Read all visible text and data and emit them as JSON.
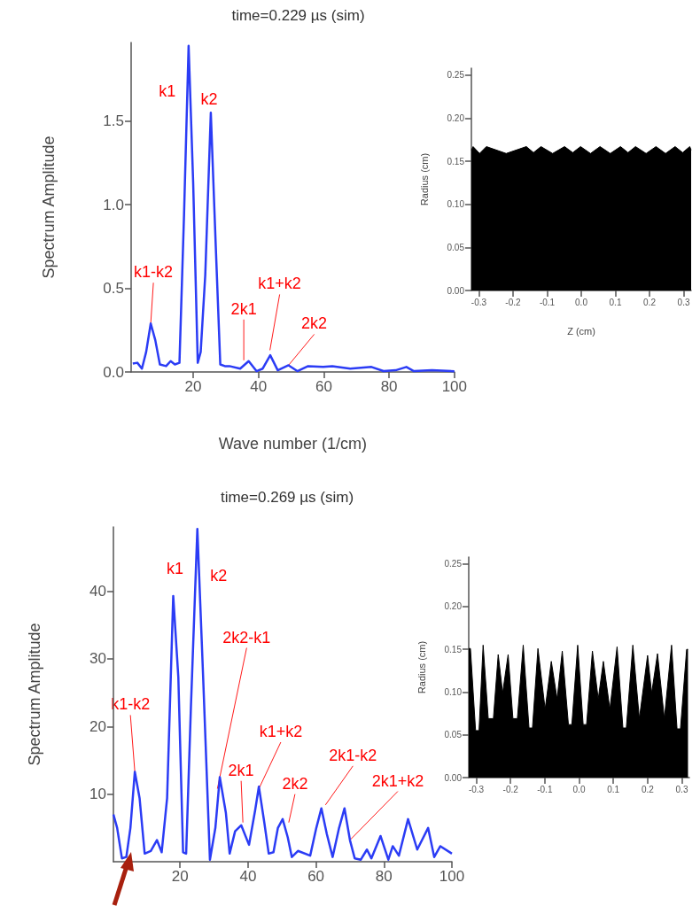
{
  "chart_data": [
    {
      "type": "line",
      "title": "time=0.229 µs (sim)",
      "xlabel": "Wave number (1/cm)",
      "ylabel": "Spectrum Amplitude",
      "color": "#2b3cf5",
      "marker": "none",
      "x": [
        1.5,
        2.9,
        4.3,
        5.6,
        7.0,
        8.4,
        9.8,
        11.7,
        13.1,
        14.4,
        15.8,
        17.2,
        18.6,
        20.0,
        21.4,
        22.3,
        23.7,
        25.4,
        26.9,
        28.3,
        29.7,
        31.1,
        34.4,
        37.0,
        39.4,
        41.3,
        43.6,
        45.9,
        49.2,
        51.9,
        55.2,
        59.8,
        62.6,
        68.1,
        74.6,
        78.3,
        82.0,
        85.3,
        87.6,
        93.1,
        100
      ],
      "values": [
        0.05,
        0.055,
        0.02,
        0.12,
        0.29,
        0.19,
        0.045,
        0.035,
        0.065,
        0.045,
        0.055,
        0.94,
        1.95,
        1.13,
        0.055,
        0.12,
        0.58,
        1.55,
        0.76,
        0.045,
        0.035,
        0.035,
        0.02,
        0.065,
        0.005,
        0.02,
        0.1,
        0.01,
        0.04,
        0.005,
        0.035,
        0.03,
        0.035,
        0.02,
        0.03,
        0.005,
        0.01,
        0.03,
        0.005,
        0.01,
        0.004
      ],
      "xlim": [
        1,
        100
      ],
      "xticks": [
        20,
        40,
        60,
        80,
        100
      ],
      "ylim": [
        0,
        1.97
      ],
      "yticks": [
        {
          "value": 0,
          "label": "0.0"
        },
        {
          "value": 0.5,
          "label": "0.5"
        },
        {
          "value": 1,
          "label": "1.0"
        },
        {
          "value": 1.5,
          "label": "1.5"
        }
      ],
      "annotations": [
        {
          "text": "k1",
          "x": 18.6,
          "y": 1.95
        },
        {
          "text": "k2",
          "x": 25.4,
          "y": 1.55
        },
        {
          "text": "k1-k2",
          "x": 7,
          "y": 0.29
        },
        {
          "text": "2k1",
          "x": 35.5,
          "y": 0.07
        },
        {
          "text": "k1+k2",
          "x": 43.5,
          "y": 0.13
        },
        {
          "text": "2k2",
          "x": 49.2,
          "y": 0.04
        }
      ]
    },
    {
      "type": "area",
      "ylabel": "Radius (cm)",
      "xlabel": "Z (cm)",
      "color": "#000000",
      "x": [
        -0.322,
        -0.317,
        -0.298,
        -0.278,
        -0.22,
        -0.161,
        -0.14,
        -0.118,
        -0.084,
        -0.049,
        -0.025,
        -0.002,
        0.027,
        0.055,
        0.085,
        0.115,
        0.137,
        0.159,
        0.19,
        0.219,
        0.247,
        0.275,
        0.297,
        0.318,
        0.322
      ],
      "values": [
        0.163,
        0.167,
        0.159,
        0.167,
        0.159,
        0.167,
        0.16,
        0.167,
        0.159,
        0.167,
        0.16,
        0.167,
        0.159,
        0.167,
        0.159,
        0.167,
        0.16,
        0.167,
        0.159,
        0.167,
        0.159,
        0.167,
        0.16,
        0.167,
        0.163
      ],
      "xlim": [
        -0.322,
        0.322
      ],
      "xticks": [
        -0.3,
        -0.2,
        -0.1,
        {
          "value": 0,
          "label": "0.0"
        },
        0.1,
        0.2,
        0.3
      ],
      "ylim": [
        0,
        0.258
      ],
      "yticks": [
        {
          "value": 0,
          "label": "0.00"
        },
        {
          "value": 0.05,
          "label": "0.05"
        },
        {
          "value": 0.1,
          "label": "0.10"
        },
        {
          "value": 0.15,
          "label": "0.15"
        },
        {
          "value": 0.2,
          "label": "0.20"
        },
        {
          "value": 0.25,
          "label": "0.25"
        }
      ]
    },
    {
      "type": "line",
      "title": "time=0.269 µs (sim)",
      "ylabel": "Spectrum Amplitude",
      "color": "#2b3cf5",
      "marker": "none",
      "x": [
        0.4,
        1.5,
        2.9,
        4.2,
        5.4,
        6.7,
        8.1,
        9.6,
        11.4,
        13.2,
        14.6,
        16.2,
        18.0,
        19.5,
        20.9,
        21.8,
        23.2,
        25.1,
        26.8,
        28.8,
        30.4,
        31.7,
        33.5,
        34.6,
        36.2,
        38.0,
        40.3,
        42.1,
        43.2,
        44.8,
        46.1,
        47.5,
        48.8,
        50.2,
        51.7,
        52.9,
        54.7,
        58.3,
        60.1,
        61.6,
        63.2,
        64.9,
        66.8,
        68.4,
        70.0,
        71.4,
        73.2,
        75.0,
        76.3,
        79.0,
        81.3,
        82.6,
        84.4,
        87.1,
        89.8,
        93.0,
        94.8,
        96.6,
        100
      ],
      "values": [
        7.0,
        5.0,
        0.5,
        0.7,
        5.0,
        13.3,
        9.4,
        1.2,
        1.6,
        3.2,
        1.4,
        9.4,
        39.3,
        27.3,
        1.4,
        1.2,
        22.8,
        49.2,
        27.3,
        0.3,
        5.0,
        12.5,
        7.2,
        1.2,
        4.5,
        5.4,
        2.5,
        7.6,
        11.1,
        5.8,
        1.2,
        1.4,
        5.0,
        6.3,
        3.6,
        0.7,
        1.6,
        0.9,
        5.0,
        7.9,
        4.1,
        0.7,
        5.0,
        7.9,
        3.2,
        0.5,
        0.3,
        1.8,
        0.5,
        3.8,
        0.3,
        2.3,
        0.9,
        6.3,
        1.8,
        5.0,
        0.7,
        2.3,
        1.2
      ],
      "xlim": [
        0.4,
        100
      ],
      "xticks": [
        20,
        40,
        60,
        80,
        100
      ],
      "ylim": [
        0,
        49.5
      ],
      "yticks": [
        10,
        20,
        30,
        40
      ],
      "annotations": [
        {
          "text": "k1-k2",
          "x": 6.7,
          "y": 13.3
        },
        {
          "text": "k1",
          "x": 18,
          "y": 39.3
        },
        {
          "text": "k2",
          "x": 25.1,
          "y": 49.2
        },
        {
          "text": "2k2-k1",
          "x": 31,
          "y": 10.8
        },
        {
          "text": "2k1",
          "x": 38.5,
          "y": 5.8
        },
        {
          "text": "k1+k2",
          "x": 43.4,
          "y": 11
        },
        {
          "text": "2k2",
          "x": 52,
          "y": 5.8
        },
        {
          "text": "2k1-k2",
          "x": 62.8,
          "y": 8.4
        },
        {
          "text": "2k1+k2",
          "x": 70.0,
          "y": 3.2
        }
      ]
    },
    {
      "type": "area",
      "ylabel": "Radius (cm)",
      "color": "#000000",
      "x": [
        -0.322,
        -0.317,
        -0.302,
        -0.292,
        -0.28,
        -0.265,
        -0.25,
        -0.236,
        -0.223,
        -0.207,
        -0.193,
        -0.18,
        -0.163,
        -0.146,
        -0.136,
        -0.12,
        -0.099,
        -0.081,
        -0.064,
        -0.049,
        -0.031,
        -0.021,
        -0.004,
        0.012,
        0.022,
        0.039,
        0.056,
        0.071,
        0.09,
        0.111,
        0.128,
        0.138,
        0.157,
        0.176,
        0.2,
        0.212,
        0.229,
        0.249,
        0.27,
        0.286,
        0.296,
        0.314,
        0.318
      ],
      "values": [
        0.151,
        0.151,
        0.055,
        0.055,
        0.155,
        0.069,
        0.069,
        0.144,
        0.099,
        0.144,
        0.069,
        0.069,
        0.155,
        0.058,
        0.058,
        0.151,
        0.08,
        0.136,
        0.092,
        0.148,
        0.062,
        0.062,
        0.155,
        0.062,
        0.062,
        0.148,
        0.092,
        0.136,
        0.08,
        0.153,
        0.058,
        0.058,
        0.155,
        0.069,
        0.143,
        0.099,
        0.145,
        0.069,
        0.155,
        0.057,
        0.057,
        0.15,
        0.15
      ],
      "xlim": [
        -0.322,
        0.322
      ],
      "xticks": [
        -0.3,
        -0.2,
        -0.1,
        {
          "value": 0,
          "label": "0.0"
        },
        0.1,
        0.2,
        0.3
      ],
      "ylim": [
        0,
        0.258
      ],
      "yticks": [
        {
          "value": 0,
          "label": "0.00"
        },
        {
          "value": 0.05,
          "label": "0.05"
        },
        {
          "value": 0.1,
          "label": "0.10"
        },
        {
          "value": 0.15,
          "label": "0.15"
        },
        {
          "value": 0.2,
          "label": "0.20"
        },
        {
          "value": 0.25,
          "label": "0.25"
        }
      ]
    }
  ]
}
